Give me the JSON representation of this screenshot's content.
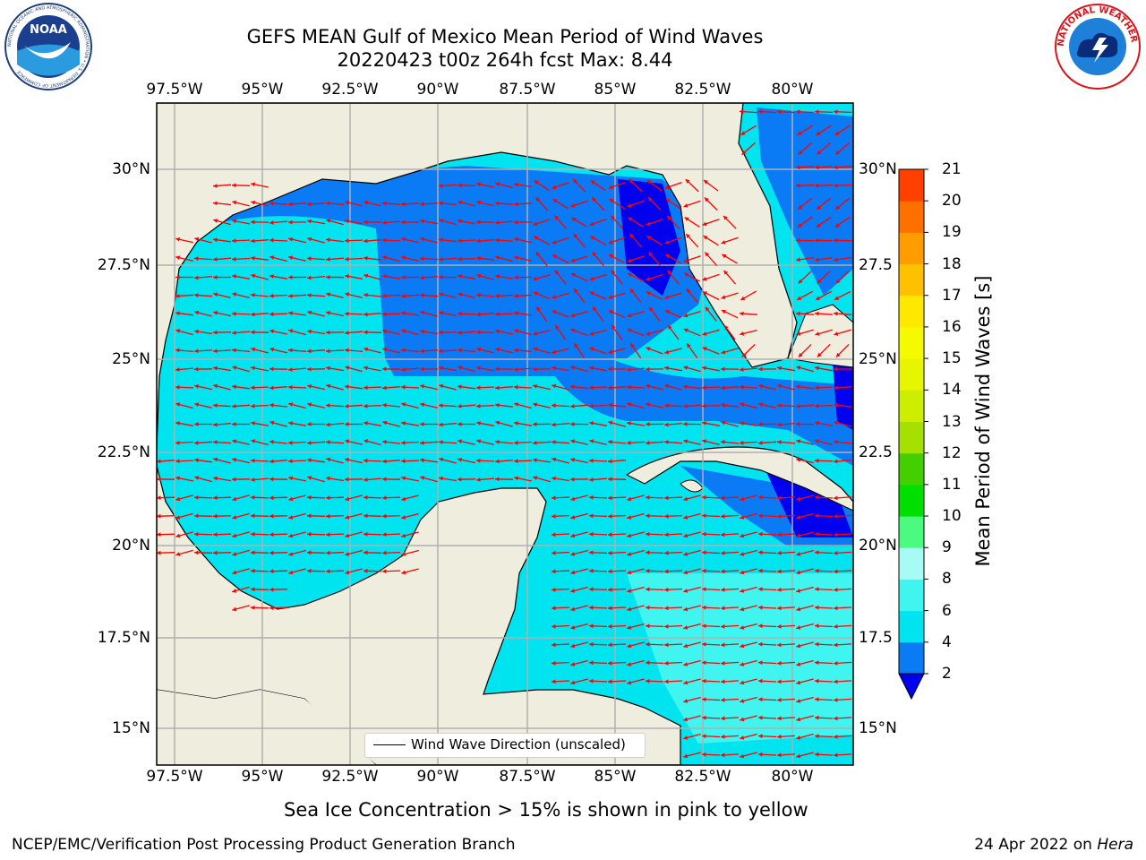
{
  "title_line1": "GEFS MEAN Gulf of Mexico Mean Period of Wind Waves",
  "title_line2": "20220423 t00z 264h fcst   Max: 8.44",
  "lon_ticks": [
    "97.5°W",
    "95°W",
    "92.5°W",
    "90°W",
    "87.5°W",
    "85°W",
    "82.5°W",
    "80°W"
  ],
  "lat_ticks_left": [
    "30°N",
    "27.5°N",
    "25°N",
    "22.5°N",
    "20°N",
    "17.5°N",
    "15°N"
  ],
  "lat_ticks_right": [
    "30°N",
    "27.5",
    "25°N",
    "22.5",
    "20°N",
    "17.5",
    "15°N"
  ],
  "colorbar": {
    "label": "Mean Period of Wind Waves [s]",
    "ticks": [
      "2",
      "4",
      "6",
      "8",
      "9",
      "10",
      "11",
      "12",
      "13",
      "14",
      "15",
      "16",
      "17",
      "18",
      "19",
      "20",
      "21"
    ],
    "colors": [
      "#0a7af5",
      "#00e4f0",
      "#40f5f0",
      "#a8fbf5",
      "#4dfa80",
      "#00e000",
      "#44d000",
      "#a6e000",
      "#cdee00",
      "#e8f500",
      "#f6fa00",
      "#ffe800",
      "#ffc000",
      "#ff9c00",
      "#ff7000",
      "#ff4000"
    ],
    "under_color": "#0000ee"
  },
  "legend_label": "Wind Wave Direction (unscaled)",
  "sea_ice_note": "Sea Ice Concentration > 15% is shown in pink to yellow",
  "footer_left": "NCEP/EMC/Verification Post Processing Product Generation Branch",
  "footer_right_date": "24 Apr 2022 on ",
  "footer_right_host": "Hera",
  "colors": {
    "land": "#efedde",
    "ocean_2_4": "#0a7af5",
    "ocean_4_6": "#00e4f0",
    "ocean_6_8": "#40f5f0",
    "ocean_lt2": "#0000ee",
    "arrow": "#ff0000",
    "grid": "#b0b0b0"
  },
  "logos": {
    "noaa_text": "NOAA",
    "noaa_ring": "NATIONAL OCEANIC AND ATMOSPHERIC ADMINISTRATION • U.S. DEPARTMENT OF COMMERCE",
    "nws_ring": "NATIONAL WEATHER SERVICE"
  }
}
